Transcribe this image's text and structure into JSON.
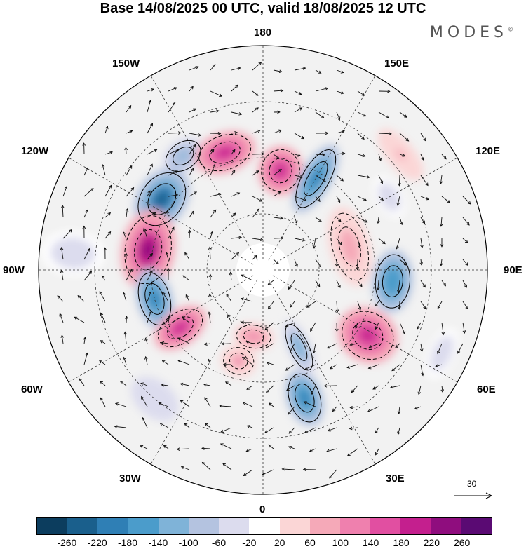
{
  "title": "Base 14/08/2025 00 UTC, valid 18/08/2025 12 UTC",
  "brand": "MODES",
  "brand_mark": "©",
  "longitude_labels": {
    "north": "180",
    "south": "0",
    "west": "90W",
    "east": "90E",
    "nw": "150W",
    "ne": "150E",
    "wnw": "120W",
    "ene": "120E",
    "wsw": "60W",
    "ese": "60E",
    "sw": "30W",
    "se": "30E"
  },
  "reference_vector": "30",
  "colorbar": {
    "colors": [
      "#0c3d5e",
      "#1a5f8c",
      "#2f7fb5",
      "#4b9ccb",
      "#7fb3d8",
      "#b4c3e0",
      "#dcdcee",
      "#ffffff",
      "#fbd6d6",
      "#f5a9b8",
      "#ef80ae",
      "#e14fa1",
      "#c41f8e",
      "#8f0d7e",
      "#5a0a73"
    ],
    "tick_labels": [
      "-260",
      "-220",
      "-180",
      "-140",
      "-100",
      "-60",
      "-20",
      "20",
      "60",
      "100",
      "140",
      "180",
      "220",
      "260"
    ]
  },
  "anomalies": [
    {
      "lon": -145,
      "r": 0.62,
      "value": -120,
      "rx": 0.1,
      "ry": 0.07
    },
    {
      "lon": -162,
      "r": 0.55,
      "value": 180,
      "rx": 0.14,
      "ry": 0.09
    },
    {
      "lon": 170,
      "r": 0.45,
      "value": 200,
      "rx": 0.1,
      "ry": 0.11
    },
    {
      "lon": 150,
      "r": 0.47,
      "value": -220,
      "rx": 0.07,
      "ry": 0.17
    },
    {
      "lon": -125,
      "r": 0.55,
      "value": -240,
      "rx": 0.15,
      "ry": 0.11
    },
    {
      "lon": -100,
      "r": 0.52,
      "value": 230,
      "rx": 0.18,
      "ry": 0.12
    },
    {
      "lon": -75,
      "r": 0.5,
      "value": -200,
      "rx": 0.14,
      "ry": 0.08
    },
    {
      "lon": -55,
      "r": 0.45,
      "value": 180,
      "rx": 0.08,
      "ry": 0.13
    },
    {
      "lon": -15,
      "r": 0.42,
      "value": 100,
      "rx": 0.08,
      "ry": 0.07
    },
    {
      "lon": -8,
      "r": 0.3,
      "value": 120,
      "rx": 0.09,
      "ry": 0.06
    },
    {
      "lon": 18,
      "r": 0.6,
      "value": -200,
      "rx": 0.08,
      "ry": 0.13
    },
    {
      "lon": 25,
      "r": 0.38,
      "value": -140,
      "rx": 0.05,
      "ry": 0.13
    },
    {
      "lon": 58,
      "r": 0.55,
      "value": 190,
      "rx": 0.12,
      "ry": 0.14
    },
    {
      "lon": 85,
      "r": 0.58,
      "value": -180,
      "rx": 0.14,
      "ry": 0.09
    },
    {
      "lon": 105,
      "r": 0.4,
      "value": 80,
      "rx": 0.18,
      "ry": 0.09
    },
    {
      "lon": 130,
      "r": 0.8,
      "value": 60,
      "rx": 0.14,
      "ry": 0.06
    },
    {
      "lon": -40,
      "r": 0.75,
      "value": -60,
      "rx": 0.12,
      "ry": 0.08
    },
    {
      "lon": 65,
      "r": 0.88,
      "value": -50,
      "rx": 0.12,
      "ry": 0.06
    },
    {
      "lon": -95,
      "r": 0.85,
      "value": -40,
      "rx": 0.1,
      "ry": 0.14
    },
    {
      "lon": 120,
      "r": 0.65,
      "value": -50,
      "rx": 0.1,
      "ry": 0.06
    }
  ]
}
